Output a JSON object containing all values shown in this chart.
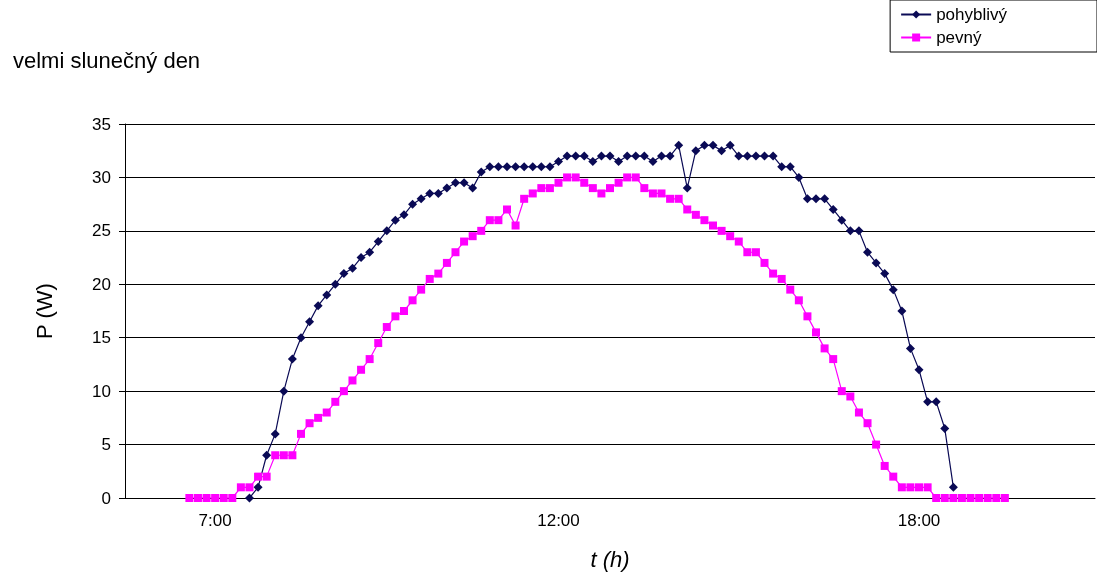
{
  "chart_data": {
    "type": "line",
    "title": "velmi slunečný den",
    "xlabel": "t (h)",
    "ylabel": "P (W)",
    "categories": [
      null,
      null,
      null,
      null,
      null,
      null,
      null,
      null,
      null,
      null,
      "7:00",
      null,
      null,
      null,
      null,
      null,
      null,
      null,
      null,
      null,
      null,
      null,
      null,
      null,
      null,
      null,
      null,
      null,
      null,
      null,
      null,
      null,
      null,
      null,
      null,
      null,
      null,
      null,
      null,
      null,
      null,
      null,
      null,
      null,
      null,
      null,
      null,
      null,
      null,
      null,
      "12:00",
      null,
      null,
      null,
      null,
      null,
      null,
      null,
      null,
      null,
      null,
      null,
      null,
      null,
      null,
      null,
      null,
      null,
      null,
      null,
      null,
      null,
      null,
      null,
      null,
      null,
      null,
      null,
      null,
      null,
      null,
      null,
      null,
      null,
      null,
      null,
      null,
      null,
      null,
      null,
      null,
      null,
      "18:00",
      null,
      null,
      null,
      null,
      null,
      null,
      null,
      null,
      null,
      null,
      null,
      null,
      null,
      null,
      null,
      null,
      null,
      null,
      null,
      null
    ],
    "series": [
      {
        "name": "pohyblivý",
        "color": "#0a0a55",
        "marker": "diamond",
        "values": [
          null,
          null,
          null,
          null,
          null,
          null,
          null,
          null,
          null,
          null,
          null,
          null,
          null,
          null,
          0,
          1,
          4,
          6,
          10,
          13,
          15,
          16.5,
          18,
          19,
          20,
          21,
          21.5,
          22.5,
          23,
          24,
          25,
          26,
          26.5,
          27.5,
          28,
          28.5,
          28.5,
          29,
          29.5,
          29.5,
          29,
          30.5,
          31,
          31,
          31,
          31,
          31,
          31,
          31,
          31,
          31.5,
          32,
          32,
          32,
          31.5,
          32,
          32,
          31.5,
          32,
          32,
          32,
          31.5,
          32,
          32,
          33,
          29,
          32.5,
          33,
          33,
          32.5,
          33,
          32,
          32,
          32,
          32,
          32,
          31,
          31,
          30,
          28,
          28,
          28,
          27,
          26,
          25,
          25,
          23,
          22,
          21,
          19.5,
          17.5,
          14,
          12,
          9,
          9,
          6.5,
          1,
          null,
          null,
          null,
          null,
          null,
          null,
          null,
          null,
          null,
          null,
          null,
          null,
          null,
          null,
          null,
          null
        ]
      },
      {
        "name": "pevný",
        "color": "#ff00ff",
        "marker": "square",
        "values": [
          null,
          null,
          null,
          null,
          null,
          null,
          null,
          0,
          0,
          0,
          0,
          0,
          0,
          1,
          1,
          2,
          2,
          4,
          4,
          4,
          6,
          7,
          7.5,
          8,
          9,
          10,
          11,
          12,
          13,
          14.5,
          16,
          17,
          17.5,
          18.5,
          19.5,
          20.5,
          21,
          22,
          23,
          24,
          24.5,
          25,
          26,
          26,
          27,
          25.5,
          28,
          28.5,
          29,
          29,
          29.5,
          30,
          30,
          29.5,
          29,
          28.5,
          29,
          29.5,
          30,
          30,
          29,
          28.5,
          28.5,
          28,
          28,
          27,
          26.5,
          26,
          25.5,
          25,
          24.5,
          24,
          23,
          23,
          22,
          21,
          20.5,
          19.5,
          18.5,
          17,
          15.5,
          14,
          13,
          10,
          9.5,
          8,
          7,
          5,
          3,
          2,
          1,
          1,
          1,
          1,
          0,
          0,
          0,
          0,
          0,
          0,
          0,
          0,
          0,
          null,
          null,
          null,
          null,
          null,
          null,
          null,
          null,
          null,
          null
        ]
      }
    ],
    "ylim": [
      0,
      35
    ],
    "yticks": [
      0,
      5,
      10,
      15,
      20,
      25,
      30,
      35
    ],
    "grid": "y",
    "legend": "top right"
  }
}
